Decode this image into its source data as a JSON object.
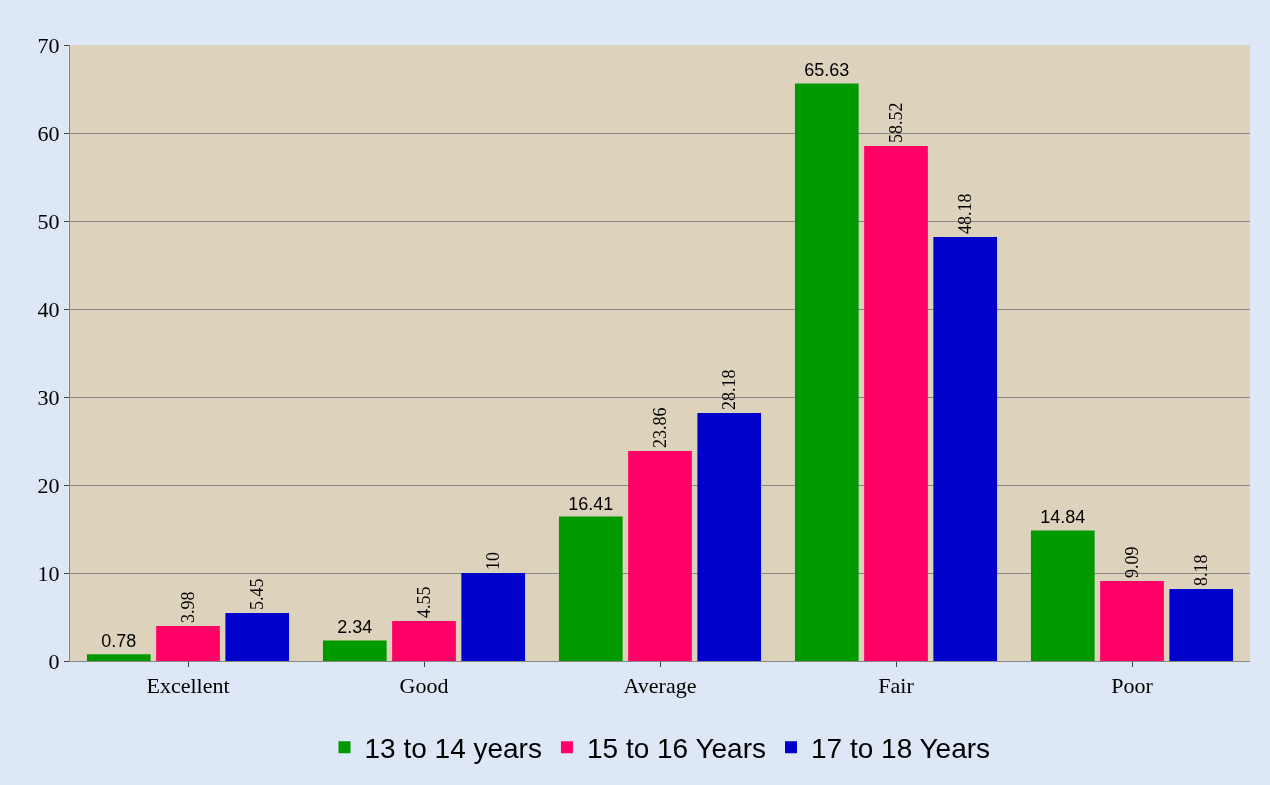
{
  "chart_data": {
    "type": "bar",
    "categories": [
      "Excellent",
      "Good",
      "Average",
      "Fair",
      "Poor"
    ],
    "series": [
      {
        "name": "13 to 14 years",
        "color": "#009900",
        "values": [
          0.78,
          2.34,
          16.41,
          65.63,
          14.84
        ]
      },
      {
        "name": "15 to 16 Years",
        "color": "#ff0066",
        "values": [
          3.98,
          4.55,
          23.86,
          58.52,
          9.09
        ]
      },
      {
        "name": "17 to 18 Years",
        "color": "#0000cc",
        "values": [
          5.45,
          10,
          28.18,
          48.18,
          8.18
        ]
      }
    ],
    "ylim": [
      0,
      70
    ],
    "yticks": [
      0,
      10,
      20,
      30,
      40,
      50,
      60,
      70
    ],
    "grid": "y",
    "legend": "bottom",
    "data_labels": true
  }
}
